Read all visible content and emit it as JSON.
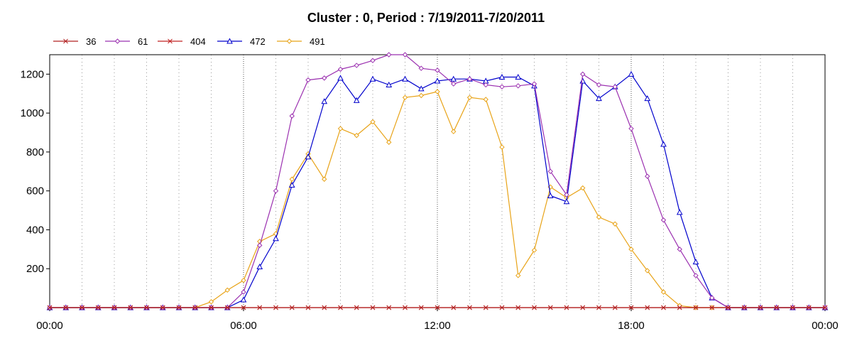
{
  "chart_data": {
    "type": "line",
    "title": "Cluster : 0, Period : 7/19/2011-7/20/2011",
    "xlabel": "",
    "ylabel": "",
    "x_tick_labels": [
      "00:00",
      "06:00",
      "12:00",
      "18:00",
      "00:00"
    ],
    "x_ticks_hours": [
      0,
      6,
      12,
      18,
      24
    ],
    "xlim_hours": [
      0,
      24
    ],
    "y_ticks": [
      200,
      400,
      600,
      800,
      1000,
      1200
    ],
    "ylim": [
      0,
      1300
    ],
    "grid": "dotted vertical hourly lines, major every 6 hours",
    "legend_position": "top-left",
    "x_hours": [
      0,
      0.5,
      1,
      1.5,
      2,
      2.5,
      3,
      3.5,
      4,
      4.5,
      5,
      5.5,
      6,
      6.5,
      7,
      7.5,
      8,
      8.5,
      9,
      9.5,
      10,
      10.5,
      11,
      11.5,
      12,
      12.5,
      13,
      13.5,
      14,
      14.5,
      15,
      15.5,
      16,
      16.5,
      17,
      17.5,
      18,
      18.5,
      19,
      19.5,
      20,
      20.5,
      21,
      21.5,
      22,
      22.5,
      23,
      23.5,
      24
    ],
    "series": [
      {
        "name": "36",
        "color": "#b22222",
        "marker": "x",
        "values": [
          0,
          0,
          0,
          0,
          0,
          0,
          0,
          0,
          0,
          0,
          0,
          0,
          0,
          0,
          0,
          0,
          0,
          0,
          0,
          0,
          0,
          0,
          0,
          0,
          0,
          0,
          0,
          0,
          0,
          0,
          0,
          0,
          0,
          0,
          0,
          0,
          0,
          0,
          0,
          0,
          0,
          0,
          0,
          0,
          0,
          0,
          0,
          0,
          0
        ]
      },
      {
        "name": "61",
        "color": "#9b30b0",
        "marker": "diamond",
        "values": [
          0,
          0,
          0,
          0,
          0,
          0,
          0,
          0,
          0,
          0,
          0,
          0,
          80,
          320,
          600,
          985,
          1170,
          1180,
          1225,
          1245,
          1270,
          1300,
          1300,
          1230,
          1220,
          1150,
          1175,
          1145,
          1135,
          1140,
          1150,
          700,
          580,
          1200,
          1145,
          1135,
          920,
          675,
          450,
          300,
          165,
          50,
          0,
          0,
          0,
          0,
          0,
          0,
          0
        ]
      },
      {
        "name": "404",
        "color": "#c02020",
        "marker": "x",
        "values": [
          0,
          0,
          0,
          0,
          0,
          0,
          0,
          0,
          0,
          0,
          0,
          0,
          0,
          0,
          0,
          0,
          0,
          0,
          0,
          0,
          0,
          0,
          0,
          0,
          0,
          0,
          0,
          0,
          0,
          0,
          0,
          0,
          0,
          0,
          0,
          0,
          0,
          0,
          0,
          0,
          0,
          0,
          0,
          0,
          0,
          0,
          0,
          0,
          0
        ]
      },
      {
        "name": "472",
        "color": "#0000cc",
        "marker": "triangle",
        "values": [
          0,
          0,
          0,
          0,
          0,
          0,
          0,
          0,
          0,
          0,
          0,
          0,
          40,
          210,
          355,
          630,
          775,
          1060,
          1180,
          1065,
          1175,
          1145,
          1175,
          1125,
          1165,
          1175,
          1175,
          1165,
          1185,
          1185,
          1140,
          575,
          545,
          1165,
          1075,
          1135,
          1200,
          1075,
          840,
          490,
          235,
          50,
          0,
          0,
          0,
          0,
          0,
          0,
          0
        ]
      },
      {
        "name": "491",
        "color": "#e8a317",
        "marker": "diamond",
        "values": [
          0,
          0,
          0,
          0,
          0,
          0,
          0,
          0,
          0,
          0,
          30,
          90,
          140,
          340,
          380,
          660,
          790,
          660,
          920,
          885,
          955,
          850,
          1080,
          1090,
          1110,
          905,
          1080,
          1070,
          825,
          165,
          295,
          620,
          565,
          615,
          465,
          430,
          300,
          190,
          80,
          10,
          0,
          0,
          0,
          0,
          0,
          0,
          0,
          0,
          0
        ]
      }
    ]
  }
}
